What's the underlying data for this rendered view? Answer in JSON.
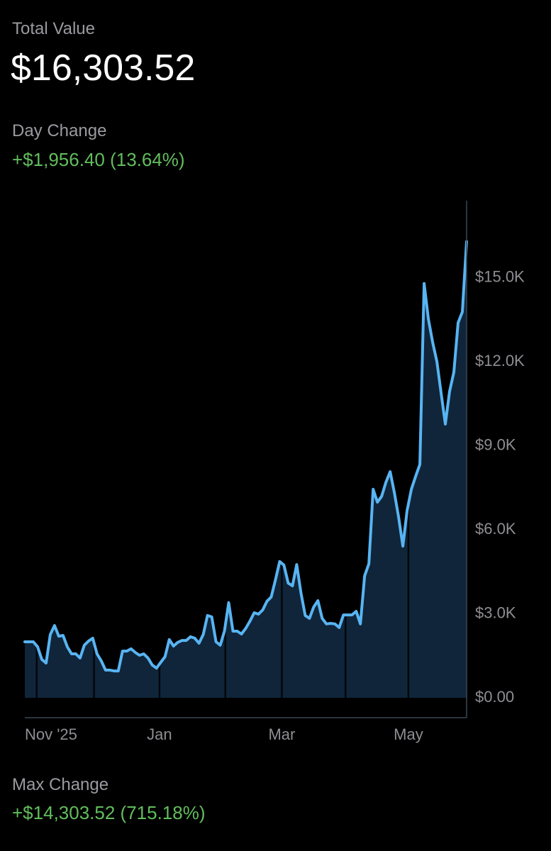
{
  "total_label": "Total Value",
  "total_value": "$16,303.52",
  "day_change_label": "Day Change",
  "day_change": "+$1,956.40 (13.64%)",
  "chart_data": {
    "type": "area",
    "series": [
      {
        "name": "Total Value",
        "color": "#58b4f2",
        "fill": "#10253a",
        "values": [
          2000,
          2000,
          2000,
          1820,
          1370,
          1240,
          2260,
          2580,
          2200,
          2230,
          1820,
          1570,
          1570,
          1420,
          1880,
          2030,
          2130,
          1570,
          1320,
          990,
          990,
          960,
          960,
          1670,
          1670,
          1750,
          1620,
          1520,
          1570,
          1420,
          1170,
          1060,
          1270,
          1470,
          2080,
          1850,
          1980,
          2050,
          2050,
          2180,
          2130,
          1950,
          2260,
          2940,
          2890,
          2000,
          1880,
          2380,
          3400,
          2380,
          2380,
          2280,
          2480,
          2740,
          3040,
          2990,
          3140,
          3450,
          3600,
          4210,
          4870,
          4740,
          4100,
          4000,
          4760,
          3750,
          2940,
          2840,
          3240,
          3470,
          2840,
          2640,
          2660,
          2640,
          2510,
          2960,
          2960,
          2960,
          3090,
          2640,
          4360,
          4790,
          7450,
          6990,
          7200,
          7700,
          8080,
          7320,
          6440,
          5420,
          6690,
          7450,
          7910,
          8340,
          14800,
          13530,
          12700,
          12010,
          10870,
          9780,
          10950,
          11630,
          13400,
          13790,
          16300
        ]
      }
    ],
    "xlim": [
      0,
      104
    ],
    "xticks": [
      {
        "value": 2.8,
        "label": "Nov '25"
      },
      {
        "value": 16.3,
        "label": null
      },
      {
        "value": 31.7,
        "label": "Jan"
      },
      {
        "value": 47.2,
        "label": null
      },
      {
        "value": 60.5,
        "label": "Mar"
      },
      {
        "value": 75.5,
        "label": null
      },
      {
        "value": 90.3,
        "label": "May"
      }
    ],
    "ylim": [
      -710,
      17760
    ],
    "yticks": [
      {
        "value": 0,
        "label": "$0.00"
      },
      {
        "value": 3000,
        "label": "$3.0K"
      },
      {
        "value": 6000,
        "label": "$6.0K"
      },
      {
        "value": 9000,
        "label": "$9.0K"
      },
      {
        "value": 12000,
        "label": "$12.0K"
      },
      {
        "value": 15000,
        "label": "$15.0K"
      }
    ],
    "grid": true
  },
  "max_change_label": "Max Change",
  "max_change": "+$14,303.52 (715.18%)"
}
